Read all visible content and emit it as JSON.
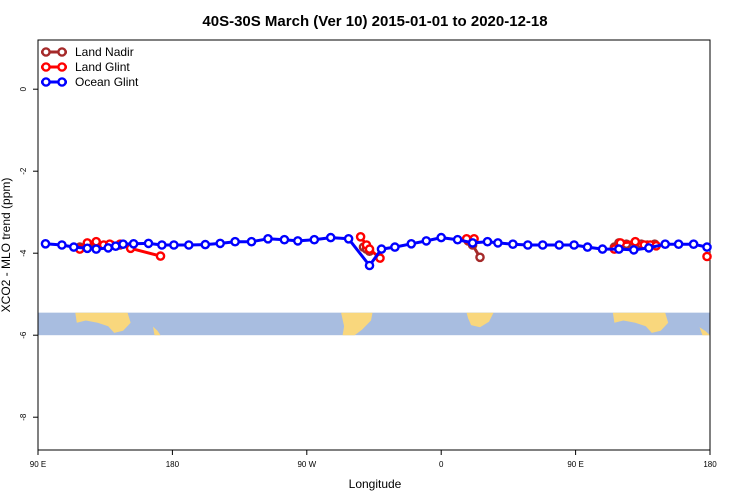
{
  "chart_data": {
    "type": "line",
    "title": "40S-30S March (Ver 10)   2015-01-01 to 2020-12-18",
    "xlabel": "Longitude",
    "ylabel": "XCO2 - MLO trend (ppm)",
    "xlim": [
      90,
      540
    ],
    "ylim": [
      -8.8,
      1.2
    ],
    "x_ticks": [
      {
        "value": 90,
        "label": "90 E"
      },
      {
        "value": 180,
        "label": "180"
      },
      {
        "value": 270,
        "label": "90 W"
      },
      {
        "value": 360,
        "label": "0"
      },
      {
        "value": 450,
        "label": "90 E"
      },
      {
        "value": 540,
        "label": "180"
      }
    ],
    "y_ticks": [
      {
        "value": 0,
        "label": "0"
      },
      {
        "value": -2,
        "label": "-2"
      },
      {
        "value": -4,
        "label": "-4"
      },
      {
        "value": -6,
        "label": "-6"
      },
      {
        "value": -8,
        "label": "-8"
      }
    ],
    "legend": {
      "position": "top-left"
    },
    "map_strip": {
      "y_range": [
        -6.0,
        -5.45
      ],
      "ocean_color": "#a8bde0",
      "land_color": "#f9d77d"
    },
    "series": [
      {
        "name": "Land Nadir",
        "color": "#a52a2a",
        "segments": [
          [
            [
              118,
              -3.85
            ],
            [
              129,
              -3.8
            ],
            [
              139,
              -3.8
            ],
            [
              145,
              -3.8
            ]
          ],
          [
            [
              308,
              -3.85
            ],
            [
              310,
              -3.9
            ],
            [
              312,
              -3.95
            ]
          ],
          [
            [
              378,
              -3.7
            ],
            [
              381,
              -3.8
            ],
            [
              386,
              -4.1
            ]
          ],
          [
            [
              476,
              -3.85
            ],
            [
              479,
              -3.75
            ],
            [
              484,
              -3.78
            ],
            [
              494,
              -3.78
            ],
            [
              498,
              -3.8
            ],
            [
              503,
              -3.78
            ]
          ]
        ]
      },
      {
        "name": "Land Glint",
        "color": "#ff0000",
        "segments": [
          [
            [
              118,
              -3.9
            ],
            [
              123,
              -3.75
            ],
            [
              129,
              -3.72
            ],
            [
              134,
              -3.8
            ],
            [
              138,
              -3.78
            ],
            [
              145,
              -3.78
            ],
            [
              152,
              -3.88
            ],
            [
              172,
              -4.07
            ]
          ],
          [
            [
              306,
              -3.6
            ],
            [
              310,
              -3.8
            ],
            [
              312,
              -3.9
            ],
            [
              319,
              -4.12
            ]
          ],
          [
            [
              377,
              -3.65
            ],
            [
              382,
              -3.65
            ]
          ],
          [
            [
              476,
              -3.9
            ],
            [
              480,
              -3.75
            ],
            [
              490,
              -3.72
            ],
            [
              496,
              -3.8
            ],
            [
              500,
              -3.8
            ],
            [
              504,
              -3.82
            ]
          ],
          [
            [
              538,
              -4.08
            ]
          ]
        ]
      },
      {
        "name": "Ocean Glint",
        "color": "#0000ff",
        "segments": [
          [
            [
              95,
              -3.77
            ],
            [
              106,
              -3.8
            ],
            [
              114,
              -3.85
            ],
            [
              123,
              -3.88
            ],
            [
              129,
              -3.9
            ],
            [
              137,
              -3.87
            ],
            [
              142,
              -3.83
            ],
            [
              147,
              -3.78
            ],
            [
              154,
              -3.77
            ],
            [
              164,
              -3.76
            ],
            [
              173,
              -3.8
            ],
            [
              181,
              -3.8
            ],
            [
              191,
              -3.8
            ],
            [
              202,
              -3.79
            ],
            [
              212,
              -3.76
            ],
            [
              222,
              -3.72
            ],
            [
              233,
              -3.72
            ],
            [
              244,
              -3.65
            ],
            [
              255,
              -3.67
            ],
            [
              264,
              -3.7
            ],
            [
              275,
              -3.67
            ],
            [
              286,
              -3.62
            ],
            [
              298,
              -3.65
            ],
            [
              312,
              -4.3
            ],
            [
              320,
              -3.9
            ],
            [
              329,
              -3.85
            ],
            [
              340,
              -3.77
            ],
            [
              350,
              -3.7
            ],
            [
              360,
              -3.62
            ],
            [
              371,
              -3.67
            ],
            [
              381,
              -3.75
            ],
            [
              391,
              -3.72
            ],
            [
              398,
              -3.75
            ],
            [
              408,
              -3.78
            ],
            [
              418,
              -3.8
            ],
            [
              428,
              -3.8
            ],
            [
              439,
              -3.8
            ],
            [
              449,
              -3.8
            ],
            [
              458,
              -3.85
            ],
            [
              468,
              -3.9
            ],
            [
              479,
              -3.9
            ],
            [
              489,
              -3.92
            ],
            [
              499,
              -3.87
            ],
            [
              510,
              -3.78
            ],
            [
              519,
              -3.78
            ],
            [
              529,
              -3.78
            ],
            [
              538,
              -3.85
            ]
          ]
        ]
      }
    ]
  }
}
